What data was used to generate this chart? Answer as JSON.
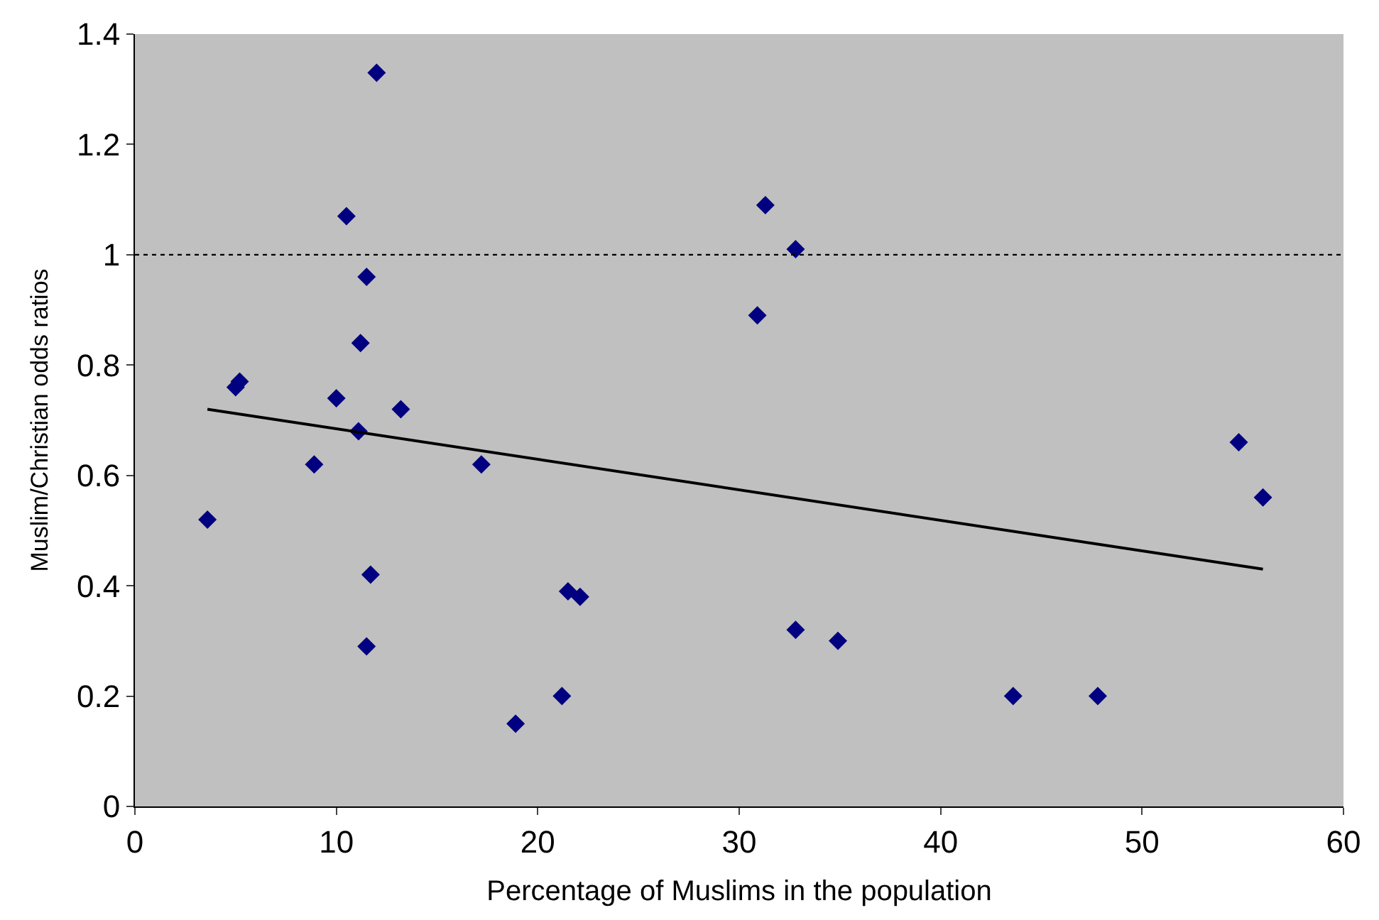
{
  "chart_data": {
    "type": "scatter",
    "xlabel": "Percentage of Muslims in the population",
    "ylabel": "Muslim/Christian odds ratios",
    "xlim": [
      0,
      60
    ],
    "xticks": [
      0,
      10,
      20,
      30,
      40,
      50,
      60
    ],
    "ylim": [
      0,
      1.4
    ],
    "yticks": [
      0,
      0.2,
      0.4,
      0.6,
      0.8,
      1,
      1.2,
      1.4
    ],
    "grid": false,
    "marker": "diamond",
    "series": [
      {
        "color": "#000080",
        "x": [
          3.6,
          5.0,
          5.2,
          8.9,
          10.0,
          10.5,
          11.2,
          11.1,
          11.5,
          11.5,
          11.7,
          12.0,
          13.2,
          17.2,
          18.9,
          21.2,
          21.5,
          22.1,
          30.9,
          31.3,
          32.8,
          32.8,
          34.9,
          43.6,
          47.8,
          54.8,
          56.0
        ],
        "values": [
          0.52,
          0.76,
          0.77,
          0.62,
          0.74,
          1.07,
          0.84,
          0.68,
          0.96,
          0.29,
          0.42,
          1.33,
          0.72,
          0.62,
          0.15,
          0.2,
          0.39,
          0.38,
          0.89,
          1.09,
          1.01,
          0.32,
          0.3,
          0.2,
          0.2,
          0.66,
          0.56
        ]
      },
      {
        "type": "line",
        "color": "#000000",
        "marker": "none",
        "line_style": "solid",
        "x": [
          3.6,
          56.0
        ],
        "values": [
          0.72,
          0.43
        ]
      }
    ],
    "ref_lines": [
      {
        "axis": "y",
        "value": 1,
        "color": "#000000",
        "line_style": "dotted"
      }
    ]
  }
}
